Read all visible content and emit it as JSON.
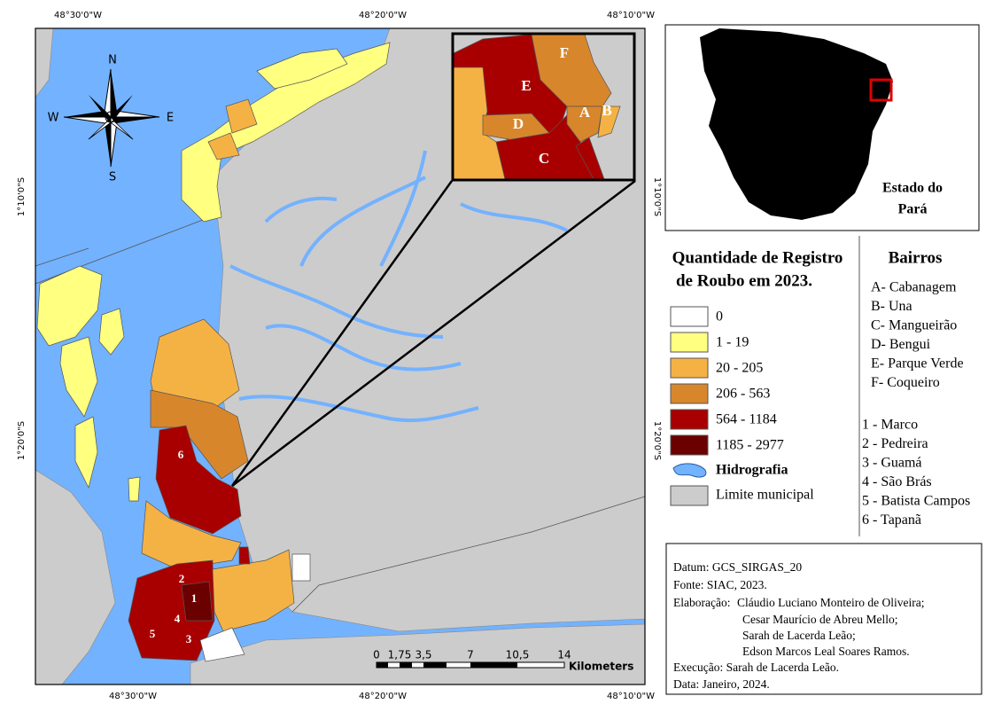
{
  "map": {
    "lon_labels": [
      "48°30'0\"W",
      "48°20'0\"W",
      "48°10'0\"W"
    ],
    "lat_labels": [
      "1°10'0\"S",
      "1°20'0\"S"
    ],
    "north_arrow": {
      "n": "N",
      "s": "S",
      "e": "E",
      "w": "W"
    },
    "inset_labels": [
      "A",
      "B",
      "C",
      "D",
      "E",
      "F"
    ],
    "neighborhood_numbers": [
      "1",
      "2",
      "3",
      "4",
      "5",
      "6"
    ],
    "scale_bar": {
      "ticks": [
        "0",
        "1,75",
        "3,5",
        "7",
        "10,5",
        "14"
      ],
      "unit": "Kilometers"
    }
  },
  "locator": {
    "label_lines": [
      "Estado do",
      "Pará"
    ],
    "state_color": "#000000",
    "highlight_color": "#e00000"
  },
  "legend": {
    "title_lines": [
      "Quantidade de Registro",
      "de Roubo em 2023."
    ],
    "classes": [
      {
        "label": "0",
        "color": "#ffffff"
      },
      {
        "label": "1 - 19",
        "color": "#ffff80"
      },
      {
        "label": "20 - 205",
        "color": "#f5b244"
      },
      {
        "label": "206 - 563",
        "color": "#d8862c"
      },
      {
        "label": "564 - 1184",
        "color": "#a80000"
      },
      {
        "label": "1185 - 2977",
        "color": "#6b0000"
      }
    ],
    "hydrography": {
      "label": "Hidrografia",
      "color": "#73b2ff"
    },
    "boundary": {
      "label": "Limite municipal",
      "color": "#cccccc"
    }
  },
  "bairros": {
    "title": "Bairros",
    "letters": [
      "A- Cabanagem",
      "B- Una",
      "C- Mangueirão",
      "D- Bengui",
      "E- Parque Verde",
      "F- Coqueiro"
    ],
    "numbers": [
      "1 - Marco",
      "2 - Pedreira",
      "3 - Guamá",
      "4 - São Brás",
      "5 - Batista Campos",
      "6 - Tapanã"
    ]
  },
  "credits": {
    "datum": "Datum: GCS_SIRGAS_20",
    "source": "Fonte: SIAC, 2023.",
    "authors_label": "Elaboração:",
    "authors": [
      "Cláudio Luciano Monteiro de Oliveira;",
      "Cesar Maurício de Abreu Mello;",
      "Sarah de Lacerda Leão;",
      "Edson Marcos Leal Soares Ramos."
    ],
    "execution": "Execução: Sarah de Lacerda Leão.",
    "date": "Data: Janeiro, 2024."
  }
}
